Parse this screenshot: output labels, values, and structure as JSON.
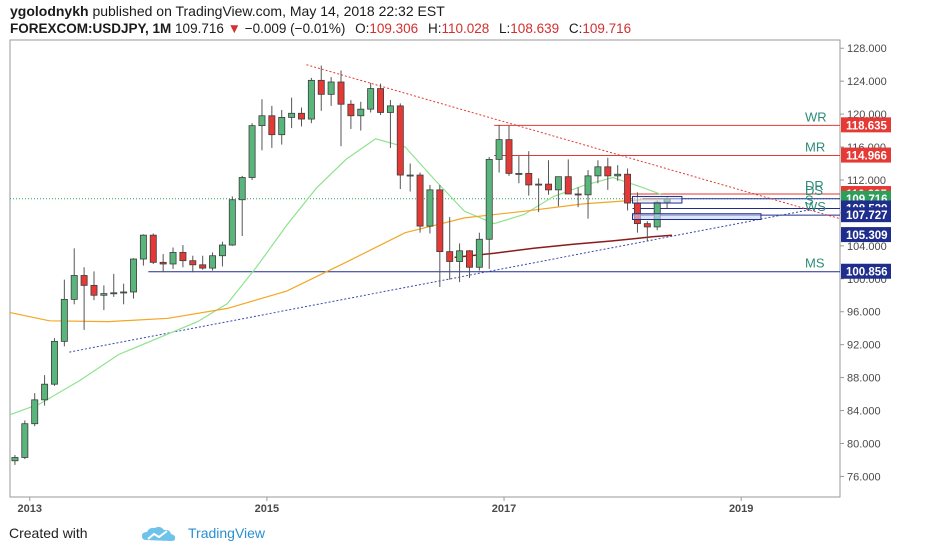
{
  "header": {
    "author": "ygolodnykh",
    "published_text": "published on TradingView.com, May 14, 2018 22:32 EST",
    "symbol": "FOREXCOM:USDJPY, 1M",
    "last_price": "109.716",
    "change_arrow": "▼",
    "change_text": "−0.009 (−0.01%)",
    "open_label": "O:",
    "open_value": "109.306",
    "high_label": "H:",
    "high_value": "110.028",
    "low_label": "L:",
    "low_value": "108.639",
    "close_label": "C:",
    "close_value": "109.716"
  },
  "footer": {
    "created_with": "Created with",
    "brand": "TradingView"
  },
  "colors": {
    "up": "#5ab57c",
    "down": "#e53935",
    "wick": "#555555",
    "sma_fast": "#8fe38f",
    "sma_slow": "#f5a623",
    "sma_long": "#8b1a1a",
    "resistance": "#e53935",
    "support": "#1f2e8c",
    "trend_down": "#e53935",
    "trend_up": "#3949ab"
  },
  "chart_data": {
    "type": "candlestick",
    "y_axis": {
      "min": 73.5,
      "max": 129,
      "ticks": [
        "76.000",
        "80.000",
        "84.000",
        "88.000",
        "92.000",
        "96.000",
        "100.000",
        "104.000",
        "108.000",
        "112.000",
        "116.000",
        "120.000",
        "124.000",
        "128.000"
      ]
    },
    "x_axis": {
      "start": "2012-11",
      "end": "2019-11",
      "labels": [
        {
          "text": "2013",
          "t": "2013-01"
        },
        {
          "text": "2015",
          "t": "2015-01"
        },
        {
          "text": "2017",
          "t": "2017-01"
        },
        {
          "text": "2019",
          "t": "2019-01"
        }
      ]
    },
    "candles": [
      [
        "2012-11",
        77.9,
        78.6,
        77.4,
        78.3
      ],
      [
        "2012-12",
        78.3,
        82.8,
        78.1,
        82.4
      ],
      [
        "2013-01",
        82.4,
        86.1,
        82.1,
        85.3
      ],
      [
        "2013-02",
        85.3,
        88.3,
        84.6,
        87.2
      ],
      [
        "2013-03",
        87.2,
        92.8,
        87.0,
        92.4
      ],
      [
        "2013-04",
        92.4,
        99.9,
        91.8,
        97.5
      ],
      [
        "2013-05",
        97.5,
        103.7,
        96.9,
        100.4
      ],
      [
        "2013-06",
        100.4,
        101.4,
        93.8,
        99.2
      ],
      [
        "2013-07",
        99.2,
        100.9,
        97.4,
        98.0
      ],
      [
        "2013-08",
        98.0,
        99.2,
        96.2,
        98.2
      ],
      [
        "2013-09",
        98.2,
        100.6,
        97.8,
        98.3
      ],
      [
        "2013-10",
        98.3,
        99.4,
        96.9,
        98.4
      ],
      [
        "2013-11",
        98.4,
        102.5,
        97.6,
        102.4
      ],
      [
        "2013-12",
        102.4,
        105.4,
        101.6,
        105.3
      ],
      [
        "2014-01",
        105.3,
        105.5,
        101.8,
        102.0
      ],
      [
        "2014-02",
        102.0,
        103.0,
        100.8,
        101.8
      ],
      [
        "2014-03",
        101.8,
        103.8,
        101.2,
        103.2
      ],
      [
        "2014-04",
        103.2,
        104.1,
        101.4,
        102.2
      ],
      [
        "2014-05",
        102.2,
        102.8,
        100.8,
        101.7
      ],
      [
        "2014-06",
        101.7,
        102.8,
        101.1,
        101.3
      ],
      [
        "2014-07",
        101.3,
        103.2,
        101.0,
        102.8
      ],
      [
        "2014-08",
        102.8,
        104.5,
        101.5,
        104.1
      ],
      [
        "2014-09",
        104.1,
        110.0,
        104.0,
        109.6
      ],
      [
        "2014-10",
        109.6,
        112.5,
        105.2,
        112.3
      ],
      [
        "2014-11",
        112.3,
        118.9,
        112.0,
        118.6
      ],
      [
        "2014-12",
        118.6,
        121.8,
        115.6,
        119.8
      ],
      [
        "2015-01",
        119.8,
        121.0,
        115.9,
        117.5
      ],
      [
        "2015-02",
        117.5,
        120.5,
        116.3,
        119.6
      ],
      [
        "2015-03",
        119.6,
        122.0,
        118.3,
        120.1
      ],
      [
        "2015-04",
        120.1,
        120.8,
        118.5,
        119.4
      ],
      [
        "2015-05",
        119.4,
        124.4,
        118.9,
        124.1
      ],
      [
        "2015-06",
        124.1,
        125.9,
        120.4,
        122.4
      ],
      [
        "2015-07",
        122.4,
        124.5,
        121.0,
        123.9
      ],
      [
        "2015-08",
        123.9,
        125.3,
        116.1,
        121.2
      ],
      [
        "2015-09",
        121.2,
        121.7,
        118.2,
        119.8
      ],
      [
        "2015-10",
        119.8,
        121.5,
        118.0,
        120.6
      ],
      [
        "2015-11",
        120.6,
        123.8,
        120.2,
        123.1
      ],
      [
        "2015-12",
        123.1,
        123.7,
        119.9,
        120.2
      ],
      [
        "2016-01",
        120.2,
        121.7,
        115.9,
        121.0
      ],
      [
        "2016-02",
        121.0,
        121.3,
        110.9,
        112.6
      ],
      [
        "2016-03",
        112.6,
        114.0,
        110.6,
        112.6
      ],
      [
        "2016-04",
        112.6,
        112.9,
        105.6,
        106.4
      ],
      [
        "2016-05",
        106.4,
        111.4,
        105.5,
        110.8
      ],
      [
        "2016-06",
        110.8,
        111.4,
        99.0,
        103.3
      ],
      [
        "2016-07",
        103.3,
        107.5,
        99.9,
        102.1
      ],
      [
        "2016-08",
        102.1,
        104.3,
        99.6,
        103.4
      ],
      [
        "2016-09",
        103.4,
        103.5,
        100.1,
        101.4
      ],
      [
        "2016-10",
        101.4,
        105.6,
        101.0,
        104.8
      ],
      [
        "2016-11",
        104.8,
        114.8,
        101.2,
        114.5
      ],
      [
        "2016-12",
        114.5,
        118.7,
        112.9,
        116.9
      ],
      [
        "2017-01",
        116.9,
        118.6,
        112.5,
        112.8
      ],
      [
        "2017-02",
        112.8,
        114.9,
        111.6,
        112.8
      ],
      [
        "2017-03",
        112.8,
        115.5,
        110.1,
        111.4
      ],
      [
        "2017-04",
        111.4,
        112.2,
        108.1,
        111.5
      ],
      [
        "2017-05",
        111.5,
        114.4,
        110.2,
        110.8
      ],
      [
        "2017-06",
        110.8,
        112.4,
        108.8,
        112.4
      ],
      [
        "2017-07",
        112.4,
        114.5,
        110.6,
        110.3
      ],
      [
        "2017-08",
        110.3,
        111.1,
        108.7,
        110.2
      ],
      [
        "2017-09",
        110.2,
        113.2,
        107.3,
        112.5
      ],
      [
        "2017-10",
        112.5,
        114.4,
        111.6,
        113.6
      ],
      [
        "2017-11",
        113.6,
        114.7,
        110.8,
        112.5
      ],
      [
        "2017-12",
        112.5,
        113.8,
        111.9,
        112.7
      ],
      [
        "2018-01",
        112.7,
        113.4,
        108.3,
        109.2
      ],
      [
        "2018-02",
        109.2,
        110.5,
        105.6,
        106.7
      ],
      [
        "2018-03",
        106.7,
        107.0,
        104.6,
        106.3
      ],
      [
        "2018-04",
        106.3,
        109.5,
        105.9,
        109.3
      ],
      [
        "2018-05",
        109.3,
        110.0,
        108.6,
        109.7
      ]
    ],
    "moving_averages": [
      {
        "name": "fast",
        "points": [
          [
            "2012-11",
            83.5
          ],
          [
            "2013-02",
            84.8
          ],
          [
            "2013-06",
            87.6
          ],
          [
            "2013-10",
            90.8
          ],
          [
            "2014-02",
            92.8
          ],
          [
            "2014-06",
            94.8
          ],
          [
            "2014-09",
            97.0
          ],
          [
            "2014-12",
            101.5
          ],
          [
            "2015-03",
            106.5
          ],
          [
            "2015-06",
            111.0
          ],
          [
            "2015-09",
            114.5
          ],
          [
            "2015-12",
            117.0
          ],
          [
            "2016-03",
            116.0
          ],
          [
            "2016-06",
            112.0
          ],
          [
            "2016-09",
            108.2
          ],
          [
            "2016-12",
            106.7
          ],
          [
            "2017-03",
            107.8
          ],
          [
            "2017-06",
            110.0
          ],
          [
            "2017-09",
            111.3
          ],
          [
            "2017-12",
            112.3
          ],
          [
            "2018-03",
            111.1
          ],
          [
            "2018-05",
            110.2
          ]
        ]
      },
      {
        "name": "slow",
        "points": [
          [
            "2012-11",
            95.9
          ],
          [
            "2013-03",
            94.9
          ],
          [
            "2013-09",
            94.8
          ],
          [
            "2014-03",
            95.2
          ],
          [
            "2014-09",
            96.4
          ],
          [
            "2015-03",
            98.5
          ],
          [
            "2015-09",
            102.0
          ],
          [
            "2016-03",
            105.6
          ],
          [
            "2016-09",
            107.4
          ],
          [
            "2017-03",
            108.2
          ],
          [
            "2017-09",
            109.1
          ],
          [
            "2018-03",
            109.6
          ],
          [
            "2018-05",
            109.6
          ]
        ]
      },
      {
        "name": "long",
        "points": [
          [
            "2016-08",
            102.6
          ],
          [
            "2016-12",
            103.1
          ],
          [
            "2017-04",
            103.7
          ],
          [
            "2017-08",
            104.2
          ],
          [
            "2017-12",
            104.6
          ],
          [
            "2018-04",
            105.1
          ],
          [
            "2018-06",
            105.3
          ]
        ]
      }
    ],
    "levels": [
      {
        "name": "WR",
        "value": 118.635,
        "label": "118.635",
        "color": "#e53935"
      },
      {
        "name": "MR",
        "value": 114.966,
        "label": "114.966",
        "color": "#e53935"
      },
      {
        "name": "DR",
        "value": 110.295,
        "label": "110.295",
        "color": "#e53935"
      },
      {
        "name": "DS",
        "value": 109.716,
        "label": "109.716",
        "color": "#2e9e5b"
      },
      {
        "name": "S",
        "value": 108.539,
        "label": "108.539",
        "color": "#1f2e8c"
      },
      {
        "name": "WS",
        "value": 107.727,
        "label": "107.727",
        "color": "#1f2e8c"
      },
      {
        "name": "",
        "value": 105.309,
        "label": "105.309",
        "color": "#1f2e8c"
      },
      {
        "name": "MS",
        "value": 100.856,
        "label": "100.856",
        "color": "#1f2e8c"
      }
    ],
    "trendlines": [
      {
        "name": "down",
        "from": [
          "2015-05",
          126.0
        ],
        "to": [
          "2019-11",
          107.3
        ]
      },
      {
        "name": "up",
        "from": [
          "2013-05",
          91.1
        ],
        "to": [
          "2019-08",
          108.4
        ]
      }
    ],
    "grid": false
  }
}
